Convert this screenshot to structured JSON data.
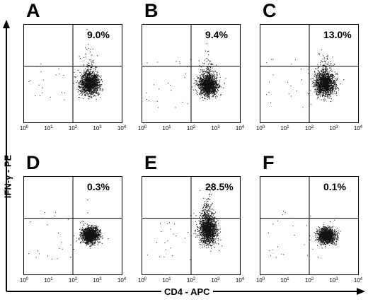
{
  "chart_data": {
    "type": "scatter",
    "x_axis_title": "CD4 - APC",
    "y_axis_title": "IFN-γ - PE",
    "x_scale": "log",
    "xlim": [
      1,
      10000
    ],
    "ylim": [
      1,
      10000
    ],
    "x_tick_labels": [
      "10",
      "10",
      "10",
      "10",
      "10"
    ],
    "x_tick_exponents": [
      "0",
      "1",
      "2",
      "3",
      "4"
    ],
    "panels": [
      {
        "label": "A",
        "percent_upper_right": "9.0%",
        "center_x": 480,
        "center_y": 40,
        "spread_x": 0.19,
        "spread_y": 0.22,
        "upper_tail": 0.35
      },
      {
        "label": "B",
        "percent_upper_right": "9.4%",
        "center_x": 480,
        "center_y": 35,
        "spread_x": 0.19,
        "spread_y": 0.21,
        "upper_tail": 0.32
      },
      {
        "label": "C",
        "percent_upper_right": "13.0%",
        "center_x": 430,
        "center_y": 38,
        "spread_x": 0.2,
        "spread_y": 0.23,
        "upper_tail": 0.45
      },
      {
        "label": "D",
        "percent_upper_right": "0.3%",
        "center_x": 500,
        "center_y": 42,
        "spread_x": 0.17,
        "spread_y": 0.16,
        "upper_tail": 0.02
      },
      {
        "label": "E",
        "percent_upper_right": "28.5%",
        "center_x": 480,
        "center_y": 60,
        "spread_x": 0.18,
        "spread_y": 0.26,
        "upper_tail": 0.8
      },
      {
        "label": "F",
        "percent_upper_right": "0.1%",
        "center_x": 500,
        "center_y": 40,
        "spread_x": 0.17,
        "spread_y": 0.15,
        "upper_tail": 0.01
      }
    ],
    "gate_x": 100,
    "gate_y": 200,
    "grid": false
  }
}
